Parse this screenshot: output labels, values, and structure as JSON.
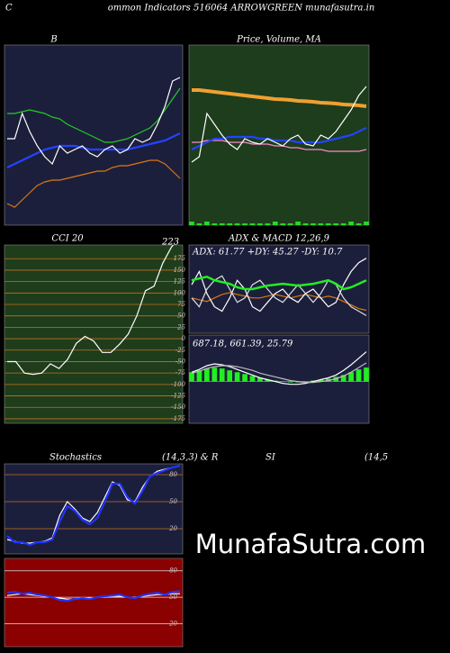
{
  "header": {
    "corner": "C",
    "title": "ommon  Indicators 516064  ARROWGREEN  munafasutra.in"
  },
  "watermark": "MunafaSutra.com",
  "stoch_title_parts": [
    "Stochastics",
    "(14,3,3) & R",
    "SI",
    "(14,5"
  ],
  "chart_data": [
    {
      "type": "line",
      "title": "B",
      "ylim": [
        0,
        100
      ],
      "series": [
        {
          "color": "#22cc22",
          "values": [
            62,
            62,
            63,
            64,
            63,
            62,
            60,
            59,
            56,
            54,
            52,
            50,
            48,
            46,
            46,
            47,
            48,
            50,
            52,
            54,
            58,
            64,
            70,
            76
          ]
        },
        {
          "color": "#2244ff",
          "values": [
            32,
            34,
            36,
            38,
            40,
            42,
            43,
            44,
            44,
            44,
            43,
            42,
            42,
            42,
            42,
            42,
            42,
            43,
            44,
            45,
            46,
            47,
            49,
            51
          ]
        },
        {
          "color": "#dd7711",
          "values": [
            12,
            10,
            14,
            18,
            22,
            24,
            25,
            25,
            26,
            27,
            28,
            29,
            30,
            30,
            32,
            33,
            33,
            34,
            35,
            36,
            36,
            34,
            30,
            26
          ]
        },
        {
          "color": "#ffffff",
          "values": [
            48,
            48,
            62,
            52,
            44,
            38,
            34,
            44,
            40,
            42,
            44,
            40,
            38,
            42,
            44,
            40,
            42,
            48,
            46,
            48,
            56,
            66,
            80,
            82
          ]
        }
      ]
    },
    {
      "type": "line",
      "title": "Price, Volume, MA",
      "ylim": [
        0,
        100
      ],
      "series": [
        {
          "color": "#22dd22",
          "style": "bar",
          "values": [
            2,
            1,
            2,
            1,
            1,
            1,
            1,
            1,
            1,
            1,
            1,
            2,
            1,
            1,
            2,
            1,
            1,
            1,
            1,
            1,
            1,
            2,
            1,
            2
          ]
        },
        {
          "color": "#f0a030",
          "values": [
            75,
            75,
            74.5,
            74,
            73.5,
            73,
            72.5,
            72,
            71.5,
            71,
            70.5,
            70,
            69.8,
            69.5,
            69,
            68.8,
            68.5,
            68,
            67.8,
            67.5,
            67,
            66.8,
            66.5,
            66
          ]
        },
        {
          "color": "#ff88cc",
          "values": [
            46,
            46,
            47,
            47,
            47,
            46,
            46,
            46,
            45,
            45,
            45,
            44,
            44,
            43,
            43,
            42,
            42,
            42,
            41,
            41,
            41,
            41,
            41,
            42
          ]
        },
        {
          "color": "#2244ff",
          "values": [
            42,
            44,
            46,
            48,
            48,
            49,
            49,
            49,
            49,
            48,
            48,
            47,
            47,
            47,
            46,
            46,
            46,
            46,
            47,
            48,
            49,
            50,
            52,
            54
          ]
        },
        {
          "color": "#ffffff",
          "values": [
            35,
            38,
            62,
            56,
            50,
            45,
            42,
            48,
            46,
            45,
            48,
            46,
            44,
            48,
            50,
            45,
            44,
            50,
            48,
            52,
            58,
            64,
            72,
            77
          ]
        }
      ]
    },
    {
      "type": "line",
      "title": "CCI 20",
      "annotation": "223",
      "ylim": [
        -185,
        205
      ],
      "yticks": [
        175,
        150,
        125,
        100,
        75,
        50,
        25,
        0,
        -25,
        -50,
        -75,
        -100,
        -125,
        -150,
        -175
      ],
      "series": [
        {
          "color": "#ffffff",
          "values": [
            -50,
            -50,
            -75,
            -78,
            -75,
            -55,
            -65,
            -45,
            -10,
            5,
            -5,
            -30,
            -30,
            -12,
            10,
            50,
            105,
            115,
            165,
            200,
            223
          ]
        }
      ]
    },
    {
      "type": "line",
      "title": "ADX  & MACD 12,26,9",
      "annotation": "ADX: 61.77 +DY: 45.27 -DY: 10.7",
      "ylim": [
        0,
        100
      ],
      "series": [
        {
          "color": "#dd7711",
          "values": [
            40,
            38,
            36,
            40,
            44,
            46,
            44,
            42,
            40,
            40,
            42,
            44,
            42,
            40,
            42,
            44,
            42,
            40,
            42,
            40,
            36,
            32,
            28,
            26
          ]
        },
        {
          "color": "#ffffff",
          "values": [
            55,
            70,
            45,
            30,
            25,
            40,
            60,
            50,
            30,
            25,
            35,
            45,
            50,
            40,
            35,
            45,
            50,
            40,
            30,
            35,
            55,
            70,
            80,
            85
          ]
        },
        {
          "color": "#dddddd",
          "values": [
            40,
            30,
            50,
            60,
            65,
            50,
            35,
            40,
            55,
            60,
            50,
            40,
            35,
            45,
            55,
            45,
            35,
            45,
            60,
            55,
            40,
            30,
            25,
            20
          ]
        },
        {
          "color": "#22ee22",
          "values": [
            60,
            62,
            64,
            60,
            58,
            56,
            52,
            50,
            50,
            52,
            54,
            55,
            56,
            55,
            54,
            55,
            56,
            58,
            60,
            56,
            50,
            52,
            56,
            60
          ]
        }
      ]
    },
    {
      "type": "line",
      "annotation": "687.18, 661.39, 25.79",
      "ylim": [
        -90,
        100
      ],
      "series": [
        {
          "color": "#22ee22",
          "style": "bar",
          "values": [
            20,
            24,
            28,
            30,
            28,
            24,
            20,
            16,
            12,
            8,
            4,
            2,
            0,
            -2,
            -2,
            0,
            2,
            4,
            6,
            10,
            14,
            20,
            26,
            30
          ]
        },
        {
          "color": "#ffffff",
          "values": [
            20,
            26,
            34,
            38,
            36,
            32,
            26,
            20,
            14,
            8,
            4,
            0,
            -4,
            -6,
            -6,
            -4,
            0,
            4,
            8,
            14,
            24,
            36,
            50,
            64
          ]
        },
        {
          "color": "#bbbbbb",
          "values": [
            18,
            22,
            28,
            32,
            34,
            34,
            32,
            28,
            24,
            18,
            14,
            10,
            6,
            2,
            0,
            -2,
            -2,
            0,
            2,
            6,
            12,
            20,
            30,
            40
          ]
        }
      ]
    },
    {
      "type": "line",
      "ylim": [
        -8,
        92
      ],
      "yticks": [
        80,
        50,
        20
      ],
      "series": [
        {
          "color": "#ffffff",
          "values": [
            8,
            6,
            4,
            4,
            5,
            6,
            10,
            35,
            50,
            42,
            32,
            28,
            38,
            55,
            72,
            68,
            52,
            50,
            66,
            78,
            84,
            86,
            88,
            90
          ]
        },
        {
          "color": "#2233ff",
          "values": [
            12,
            5,
            5,
            2,
            5,
            5,
            8,
            28,
            45,
            40,
            30,
            25,
            32,
            50,
            70,
            70,
            55,
            48,
            62,
            78,
            82,
            85,
            88,
            90
          ]
        }
      ]
    },
    {
      "type": "line",
      "ylim": [
        -6,
        94
      ],
      "yticks": [
        80,
        50,
        20
      ],
      "series": [
        {
          "color": "#ffffff",
          "values": [
            52,
            53,
            54,
            53,
            52,
            51,
            50,
            49,
            48,
            48,
            49,
            49,
            50,
            50,
            51,
            51,
            50,
            50,
            51,
            52,
            53,
            53,
            54,
            54
          ]
        },
        {
          "color": "#2233ff",
          "values": [
            55,
            56,
            54,
            55,
            53,
            52,
            50,
            47,
            46,
            48,
            49,
            48,
            50,
            51,
            52,
            53,
            50,
            49,
            52,
            54,
            55,
            53,
            56,
            57
          ]
        }
      ]
    }
  ]
}
